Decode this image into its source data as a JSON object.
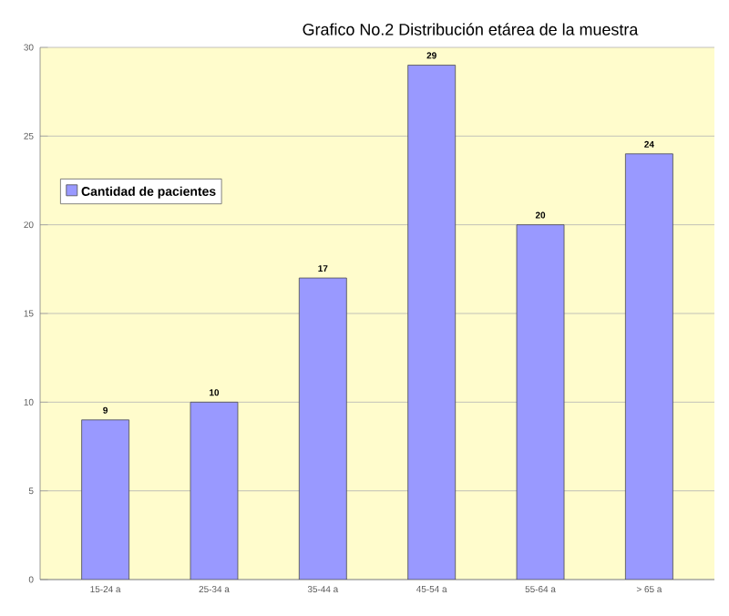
{
  "chart_data": {
    "type": "bar",
    "title": "Grafico No.2  Distribución etárea de la muestra",
    "categories": [
      "15-24 a",
      "25-34 a",
      "35-44 a",
      "45-54 a",
      "55-64 a",
      "> 65 a"
    ],
    "series": [
      {
        "name": "Cantidad de pacientes",
        "color": "#9999ff",
        "values": [
          9,
          10,
          17,
          29,
          20,
          24
        ]
      }
    ],
    "ylim": [
      0,
      30
    ],
    "yticks": [
      0,
      5,
      10,
      15,
      20,
      25,
      30
    ],
    "grid": "y",
    "legend": "top left",
    "data_labels": true
  }
}
